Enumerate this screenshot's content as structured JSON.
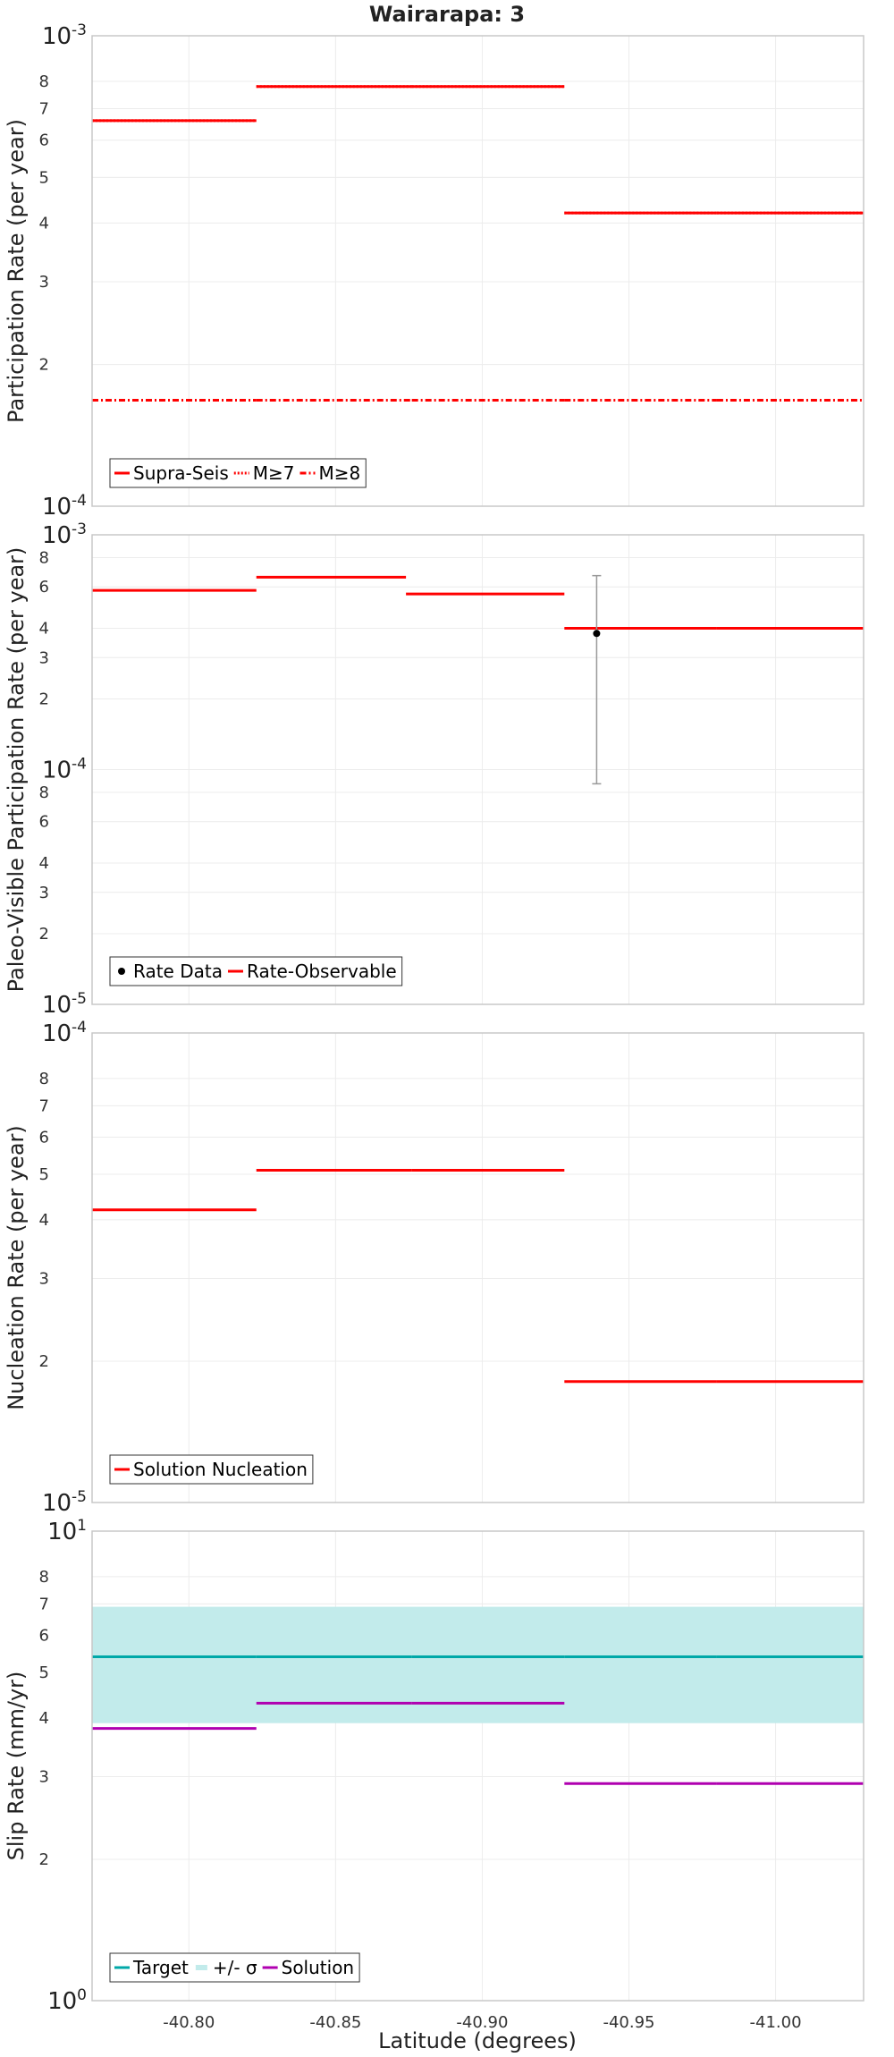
{
  "title": "Wairarapa: 3",
  "x_axis": {
    "label": "Latitude (degrees)",
    "range": [
      -40.767,
      -41.03
    ],
    "ticks": [
      -40.8,
      -40.85,
      -40.9,
      -40.95,
      -41.0
    ],
    "tick_labels": [
      "-40.80",
      "-40.85",
      "-40.90",
      "-40.95",
      "-41.00"
    ]
  },
  "chart_data": [
    {
      "type": "line",
      "panel": "participation",
      "ylabel": "Participation Rate (per year)",
      "yscale": "log",
      "ylim": [
        0.0001,
        0.001
      ],
      "y_major": [
        {
          "value": 0.0001,
          "mantissa": "10",
          "exponent": "-4"
        },
        {
          "value": 0.001,
          "mantissa": "10",
          "exponent": "-3"
        }
      ],
      "y_minor": [
        {
          "value": 0.0002,
          "label": "2"
        },
        {
          "value": 0.0003,
          "label": "3"
        },
        {
          "value": 0.0004,
          "label": "4"
        },
        {
          "value": 0.0005,
          "label": "5"
        },
        {
          "value": 0.0006,
          "label": "6"
        },
        {
          "value": 0.0007,
          "label": "7"
        },
        {
          "value": 0.0008,
          "label": "8"
        }
      ],
      "legend_position": "bottom-left",
      "series": [
        {
          "name": "Supra-Seis",
          "color": "#ff0000",
          "style": "solid",
          "segments": [
            {
              "x": [
                -40.767,
                -40.823
              ],
              "y": 0.00066
            },
            {
              "x": [
                -40.823,
                -40.876
              ],
              "y": 0.00078
            },
            {
              "x": [
                -40.876,
                -40.928
              ],
              "y": 0.00078
            },
            {
              "x": [
                -40.928,
                -40.98
              ],
              "y": 0.00042
            },
            {
              "x": [
                -40.98,
                -41.03
              ],
              "y": 0.00042
            }
          ]
        },
        {
          "name": "M≥7",
          "color": "#ff0000",
          "style": "dotted",
          "segments": [
            {
              "x": [
                -40.767,
                -40.823
              ],
              "y": 0.00066
            },
            {
              "x": [
                -40.823,
                -40.876
              ],
              "y": 0.00078
            },
            {
              "x": [
                -40.876,
                -40.928
              ],
              "y": 0.00078
            },
            {
              "x": [
                -40.928,
                -40.98
              ],
              "y": 0.00042
            },
            {
              "x": [
                -40.98,
                -41.03
              ],
              "y": 0.00042
            }
          ]
        },
        {
          "name": "M≥8",
          "color": "#ff0000",
          "style": "dashdot",
          "segments": [
            {
              "x": [
                -40.767,
                -40.823
              ],
              "y": 0.000168
            },
            {
              "x": [
                -40.823,
                -40.876
              ],
              "y": 0.000168
            },
            {
              "x": [
                -40.876,
                -40.928
              ],
              "y": 0.000168
            },
            {
              "x": [
                -40.928,
                -40.98
              ],
              "y": 0.000168
            },
            {
              "x": [
                -40.98,
                -41.03
              ],
              "y": 0.000168
            }
          ]
        }
      ]
    },
    {
      "type": "line",
      "panel": "paleo",
      "ylabel": "Paleo-Visible Participation Rate (per year)",
      "yscale": "log",
      "ylim": [
        1e-05,
        0.001
      ],
      "y_major": [
        {
          "value": 1e-05,
          "mantissa": "10",
          "exponent": "-5"
        },
        {
          "value": 0.0001,
          "mantissa": "10",
          "exponent": "-4"
        },
        {
          "value": 0.001,
          "mantissa": "10",
          "exponent": "-3"
        }
      ],
      "y_minor": [
        {
          "value": 2e-05,
          "label": "2"
        },
        {
          "value": 3e-05,
          "label": "3"
        },
        {
          "value": 4e-05,
          "label": "4"
        },
        {
          "value": 6e-05,
          "label": "6"
        },
        {
          "value": 8e-05,
          "label": "8"
        },
        {
          "value": 0.0002,
          "label": "2"
        },
        {
          "value": 0.0003,
          "label": "3"
        },
        {
          "value": 0.0004,
          "label": "4"
        },
        {
          "value": 0.0006,
          "label": "6"
        },
        {
          "value": 0.0008,
          "label": "8"
        }
      ],
      "legend_position": "bottom-left",
      "series": [
        {
          "name": "Rate-Observable",
          "color": "#ff0000",
          "style": "solid",
          "segments": [
            {
              "x": [
                -40.767,
                -40.823
              ],
              "y": 0.00058
            },
            {
              "x": [
                -40.823,
                -40.874
              ],
              "y": 0.00066
            },
            {
              "x": [
                -40.874,
                -40.928
              ],
              "y": 0.00056
            },
            {
              "x": [
                -40.928,
                -40.98
              ],
              "y": 0.0004
            },
            {
              "x": [
                -40.98,
                -41.03
              ],
              "y": 0.0004
            }
          ]
        }
      ],
      "points": [
        {
          "name": "Rate Data",
          "x": -40.939,
          "y": 0.00038,
          "y_low": 8.7e-05,
          "y_high": 0.00067,
          "color": "#000000"
        }
      ]
    },
    {
      "type": "line",
      "panel": "nucleation",
      "ylabel": "Nucleation Rate (per year)",
      "yscale": "log",
      "ylim": [
        1e-05,
        0.0001
      ],
      "y_major": [
        {
          "value": 1e-05,
          "mantissa": "10",
          "exponent": "-5"
        },
        {
          "value": 0.0001,
          "mantissa": "10",
          "exponent": "-4"
        }
      ],
      "y_minor": [
        {
          "value": 2e-05,
          "label": "2"
        },
        {
          "value": 3e-05,
          "label": "3"
        },
        {
          "value": 4e-05,
          "label": "4"
        },
        {
          "value": 5e-05,
          "label": "5"
        },
        {
          "value": 6e-05,
          "label": "6"
        },
        {
          "value": 7e-05,
          "label": "7"
        },
        {
          "value": 8e-05,
          "label": "8"
        }
      ],
      "legend_position": "bottom-left",
      "series": [
        {
          "name": "Solution Nucleation",
          "color": "#ff0000",
          "style": "solid",
          "segments": [
            {
              "x": [
                -40.767,
                -40.823
              ],
              "y": 4.2e-05
            },
            {
              "x": [
                -40.823,
                -40.876
              ],
              "y": 5.1e-05
            },
            {
              "x": [
                -40.876,
                -40.928
              ],
              "y": 5.1e-05
            },
            {
              "x": [
                -40.928,
                -40.98
              ],
              "y": 1.81e-05
            },
            {
              "x": [
                -40.98,
                -41.03
              ],
              "y": 1.81e-05
            }
          ]
        }
      ]
    },
    {
      "type": "line",
      "panel": "slip",
      "ylabel": "Slip Rate (mm/yr)",
      "yscale": "log",
      "ylim": [
        1,
        10
      ],
      "y_major": [
        {
          "value": 1,
          "mantissa": "10",
          "exponent": "0"
        },
        {
          "value": 10,
          "mantissa": "10",
          "exponent": "1"
        }
      ],
      "y_minor": [
        {
          "value": 2,
          "label": "2"
        },
        {
          "value": 3,
          "label": "3"
        },
        {
          "value": 4,
          "label": "4"
        },
        {
          "value": 5,
          "label": "5"
        },
        {
          "value": 6,
          "label": "6"
        },
        {
          "value": 7,
          "label": "7"
        },
        {
          "value": 8,
          "label": "8"
        }
      ],
      "legend_position": "bottom-left",
      "band": {
        "name": "+/- σ",
        "y_low": 3.9,
        "y_high": 6.9,
        "x": [
          -40.767,
          -41.03
        ],
        "color": "#c2ebeb"
      },
      "series": [
        {
          "name": "Target",
          "color": "#00a8a8",
          "style": "solid",
          "segments": [
            {
              "x": [
                -40.767,
                -40.823
              ],
              "y": 5.4
            },
            {
              "x": [
                -40.823,
                -40.876
              ],
              "y": 5.4
            },
            {
              "x": [
                -40.876,
                -40.928
              ],
              "y": 5.4
            },
            {
              "x": [
                -40.928,
                -40.98
              ],
              "y": 5.4
            },
            {
              "x": [
                -40.98,
                -41.03
              ],
              "y": 5.4
            }
          ]
        },
        {
          "name": "Solution",
          "color": "#b000b0",
          "style": "solid",
          "segments": [
            {
              "x": [
                -40.767,
                -40.823
              ],
              "y": 3.8
            },
            {
              "x": [
                -40.823,
                -40.876
              ],
              "y": 4.3
            },
            {
              "x": [
                -40.876,
                -40.928
              ],
              "y": 4.3
            },
            {
              "x": [
                -40.928,
                -40.98
              ],
              "y": 2.9
            },
            {
              "x": [
                -40.98,
                -41.03
              ],
              "y": 2.9
            }
          ]
        }
      ]
    }
  ],
  "legends": [
    [
      "Supra-Seis",
      "M≥7",
      "M≥8"
    ],
    [
      "Rate Data",
      "Rate-Observable"
    ],
    [
      "Solution Nucleation"
    ],
    [
      "Target",
      "+/- σ",
      "Solution"
    ]
  ]
}
